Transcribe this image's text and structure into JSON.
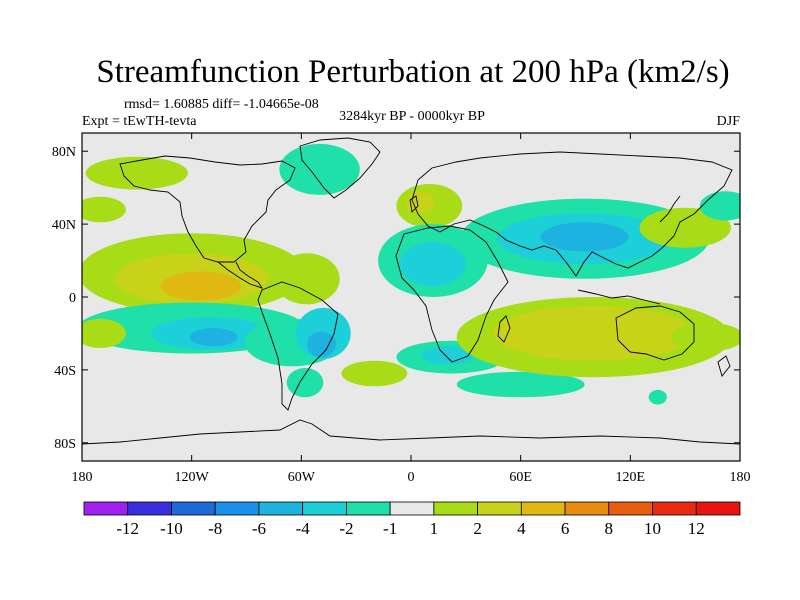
{
  "chart_data": {
    "type": "contour-map",
    "title": "Streamfunction Perturbation at 200 hPa (km2/s)",
    "stats_line": "rmsd= 1.60885 diff= -1.04665e-08",
    "left_label": "Expt = tEwTH-tevta",
    "center_label": "3284kyr BP - 0000kyr BP",
    "right_label": "DJF",
    "x_tick_labels": [
      "180",
      "120W",
      "60W",
      "0",
      "60E",
      "120E",
      "180"
    ],
    "x_tick_values": [
      -180,
      -120,
      -60,
      0,
      60,
      120,
      180
    ],
    "y_tick_labels": [
      "80N",
      "40N",
      "0",
      "40S",
      "80S"
    ],
    "y_tick_values": [
      80,
      40,
      0,
      -40,
      -80
    ],
    "xlim": [
      -180,
      180
    ],
    "ylim": [
      -90,
      90
    ],
    "colorbar": {
      "labels": [
        "-12",
        "-10",
        "-8",
        "-6",
        "-4",
        "-2",
        "-1",
        "1",
        "2",
        "4",
        "6",
        "8",
        "10",
        "12"
      ],
      "colors": [
        "#a020f0",
        "#3a2ee0",
        "#1f68d8",
        "#1b90e8",
        "#1eb2e0",
        "#1ccfd8",
        "#1ee0a8",
        "#e8e8e8",
        "#a8dc16",
        "#c8d218",
        "#e0b812",
        "#e88c10",
        "#e85e10",
        "#e82a10",
        "#e81410"
      ]
    },
    "anomaly_regions": [
      {
        "lon": -150,
        "lat": 68,
        "rx": 28,
        "ry": 9,
        "level": 1
      },
      {
        "lon": -170,
        "lat": 48,
        "rx": 14,
        "ry": 7,
        "level": 1
      },
      {
        "lon": -120,
        "lat": 13,
        "rx": 62,
        "ry": 22,
        "level": 1
      },
      {
        "lon": -120,
        "lat": 10,
        "rx": 42,
        "ry": 14,
        "level": 2
      },
      {
        "lon": -115,
        "lat": 6,
        "rx": 22,
        "ry": 8,
        "level": 3
      },
      {
        "lon": -57,
        "lat": 10,
        "rx": 18,
        "ry": 14,
        "level": 1
      },
      {
        "lon": -120,
        "lat": -17,
        "rx": 62,
        "ry": 14,
        "level": -1
      },
      {
        "lon": -110,
        "lat": -20,
        "rx": 32,
        "ry": 9,
        "level": -2
      },
      {
        "lon": -108,
        "lat": -22,
        "rx": 13,
        "ry": 5,
        "level": -3
      },
      {
        "lon": -65,
        "lat": -25,
        "rx": 26,
        "ry": 13,
        "level": -1
      },
      {
        "lon": -48,
        "lat": -20,
        "rx": 15,
        "ry": 14,
        "level": -2
      },
      {
        "lon": -49,
        "lat": -26,
        "rx": 8,
        "ry": 7,
        "level": -3
      },
      {
        "lon": -58,
        "lat": -47,
        "rx": 10,
        "ry": 8,
        "level": -1
      },
      {
        "lon": -50,
        "lat": 70,
        "rx": 22,
        "ry": 14,
        "level": -1
      },
      {
        "lon": 10,
        "lat": 50,
        "rx": 18,
        "ry": 12,
        "level": 1
      },
      {
        "lon": 5,
        "lat": 52,
        "rx": 8,
        "ry": 6,
        "level": 2
      },
      {
        "lon": 12,
        "lat": 20,
        "rx": 30,
        "ry": 20,
        "level": -1
      },
      {
        "lon": 12,
        "lat": 18,
        "rx": 18,
        "ry": 12,
        "level": -2
      },
      {
        "lon": -20,
        "lat": -42,
        "rx": 18,
        "ry": 7,
        "level": 1
      },
      {
        "lon": 22,
        "lat": -33,
        "rx": 30,
        "ry": 9,
        "level": -1
      },
      {
        "lon": 20,
        "lat": -32,
        "rx": 14,
        "ry": 5,
        "level": -2
      },
      {
        "lon": 60,
        "lat": -48,
        "rx": 35,
        "ry": 7,
        "level": -1
      },
      {
        "lon": 100,
        "lat": -22,
        "rx": 75,
        "ry": 22,
        "level": 1
      },
      {
        "lon": 100,
        "lat": -20,
        "rx": 55,
        "ry": 15,
        "level": 2
      },
      {
        "lon": 135,
        "lat": -55,
        "rx": 5,
        "ry": 4,
        "level": -1
      },
      {
        "lon": 95,
        "lat": 32,
        "rx": 68,
        "ry": 22,
        "level": -1
      },
      {
        "lon": 95,
        "lat": 32,
        "rx": 48,
        "ry": 14,
        "level": -2
      },
      {
        "lon": 95,
        "lat": 33,
        "rx": 24,
        "ry": 8,
        "level": -3
      },
      {
        "lon": 150,
        "lat": 38,
        "rx": 25,
        "ry": 11,
        "level": 1
      },
      {
        "lon": 172,
        "lat": 50,
        "rx": 14,
        "ry": 8,
        "level": -1
      },
      {
        "lon": 162,
        "lat": -22,
        "rx": 20,
        "ry": 8,
        "level": 1
      },
      {
        "lon": -170,
        "lat": -20,
        "rx": 14,
        "ry": 8,
        "level": 1
      }
    ]
  }
}
